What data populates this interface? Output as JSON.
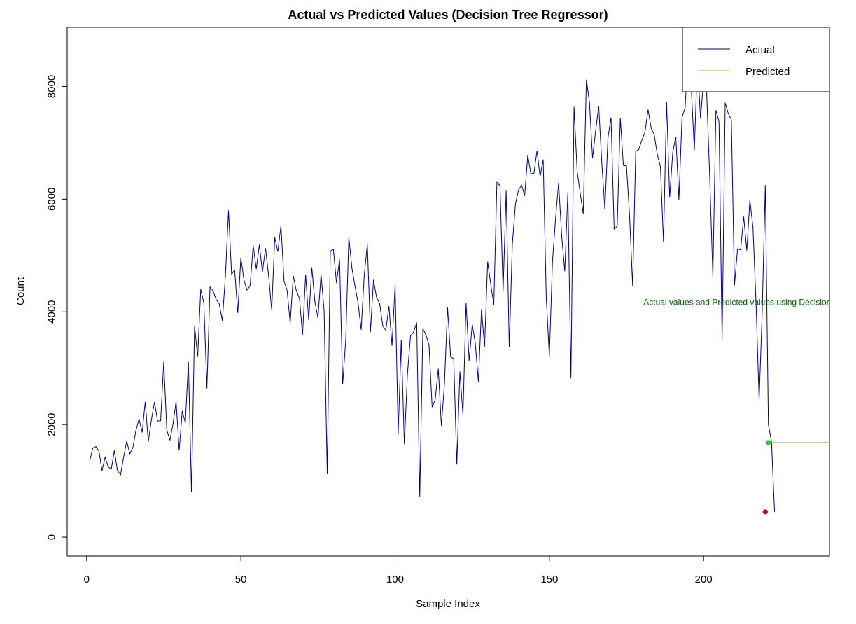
{
  "chart_data": {
    "type": "line",
    "title": "Actual vs Predicted Values (Decision Tree Regressor)",
    "xlabel": "Sample Index",
    "ylabel": "Count",
    "xlim": [
      -6.3,
      240.8
    ],
    "ylim": [
      -335,
      9050
    ],
    "x_ticks": [
      0,
      50,
      100,
      150,
      200
    ],
    "y_ticks": [
      0,
      2000,
      4000,
      6000,
      8000
    ],
    "grid": false,
    "legend_position": "top-right",
    "legend": [
      {
        "label": "Actual",
        "color": "#00008b"
      },
      {
        "label": "Predicted",
        "color": "#daa520"
      }
    ],
    "annotation": {
      "text": "Actual values and Predicted values  using Decision Tree Regressor",
      "x": 180.5,
      "y": 4120,
      "color": "#006400"
    },
    "series": [
      {
        "name": "Actual",
        "color": "#00008b",
        "x_start": 1,
        "values": [
          1350,
          1580,
          1610,
          1530,
          1180,
          1420,
          1250,
          1210,
          1540,
          1180,
          1110,
          1420,
          1710,
          1480,
          1590,
          1900,
          2100,
          1860,
          2400,
          1700,
          2080,
          2400,
          2060,
          2070,
          3110,
          1900,
          1720,
          2010,
          2410,
          1540,
          2240,
          2030,
          3110,
          800,
          3750,
          3200,
          4400,
          4160,
          2640,
          4440,
          4370,
          4220,
          4140,
          3840,
          4640,
          5800,
          4670,
          4740,
          3980,
          4960,
          4570,
          4390,
          4460,
          5180,
          4760,
          5190,
          4710,
          5130,
          4640,
          4030,
          5320,
          5070,
          5530,
          4550,
          4380,
          3800,
          4640,
          4370,
          4240,
          3590,
          4660,
          3850,
          4790,
          4180,
          3890,
          4670,
          4010,
          1120,
          5080,
          5110,
          4510,
          4930,
          2710,
          3500,
          5330,
          4780,
          4460,
          4160,
          3680,
          4650,
          5200,
          3640,
          4570,
          4250,
          4150,
          3750,
          3670,
          4100,
          3400,
          4480,
          1830,
          3500,
          1650,
          2900,
          3570,
          3640,
          3810,
          720,
          3700,
          3590,
          3410,
          2310,
          2440,
          2990,
          1980,
          2720,
          4080,
          3200,
          3170,
          1290,
          2940,
          2170,
          4160,
          3130,
          3780,
          3440,
          2760,
          4050,
          3380,
          4890,
          4490,
          4130,
          6300,
          6240,
          4360,
          6150,
          3370,
          5200,
          5910,
          6160,
          6250,
          6060,
          6780,
          6450,
          6460,
          6860,
          6400,
          6700,
          4250,
          3210,
          4880,
          5650,
          6290,
          5350,
          4720,
          6120,
          2820,
          7640,
          6500,
          6110,
          5740,
          8120,
          7720,
          6730,
          7210,
          7650,
          6650,
          5820,
          7090,
          7450,
          5470,
          5520,
          7440,
          6600,
          6590,
          5710,
          4460,
          6850,
          6880,
          7050,
          7190,
          7590,
          7260,
          7140,
          6790,
          6580,
          5240,
          7720,
          6030,
          6830,
          7110,
          5990,
          7450,
          7620,
          8600,
          7980,
          6870,
          8470,
          7430,
          8120,
          7880,
          6360,
          4630,
          7580,
          7370,
          3500,
          7710,
          7520,
          7410,
          4470,
          5120,
          5100,
          5690,
          5090,
          5980,
          5500,
          4150,
          2430,
          4010,
          6250,
          2000,
          1700,
          450
        ]
      },
      {
        "name": "Predicted",
        "color": "#daa520",
        "x": [
          221,
          240.8
        ],
        "values": [
          1680,
          1680
        ]
      }
    ],
    "markers": [
      {
        "x": 220,
        "y": 450,
        "color": "#cc0000"
      },
      {
        "x": 221,
        "y": 1680,
        "color": "#22cc22"
      }
    ]
  }
}
